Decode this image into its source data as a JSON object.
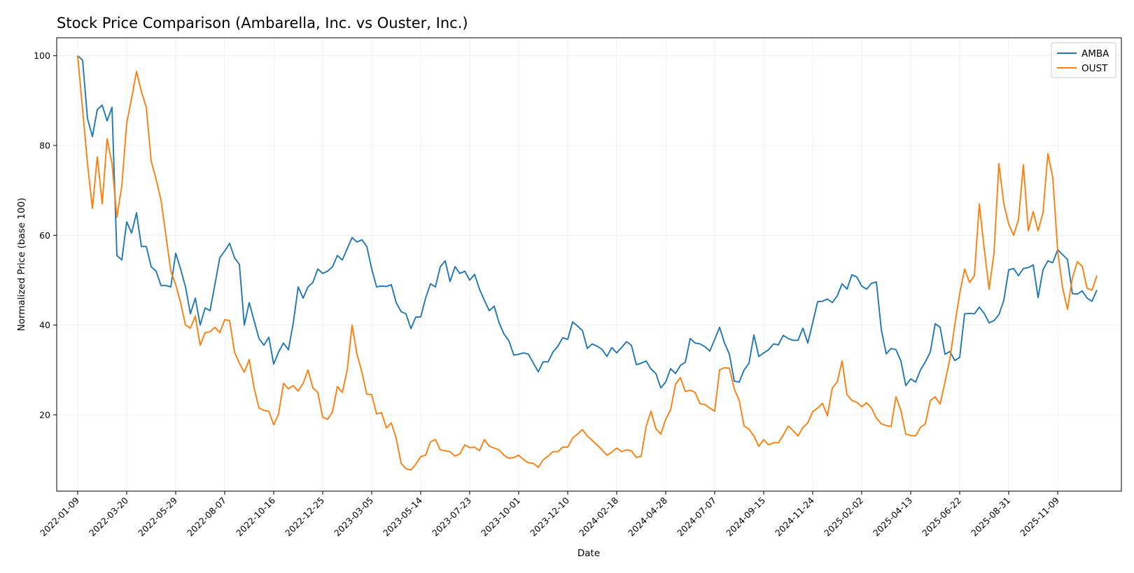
{
  "chart_data": {
    "type": "line",
    "title": "Stock Price Comparison (Ambarella, Inc. vs Ouster, Inc.)",
    "xlabel": "Date",
    "ylabel": "Normalized Price (base 100)",
    "x_start": "2022-01-09",
    "x_step_days": 7,
    "xlim": [
      "2021-12-10",
      "2026-02-08"
    ],
    "ylim": [
      3,
      104
    ],
    "x_ticks": [
      "2022-01-09",
      "2022-03-20",
      "2022-05-29",
      "2022-08-07",
      "2022-10-16",
      "2022-12-25",
      "2023-03-05",
      "2023-05-14",
      "2023-07-23",
      "2023-10-01",
      "2023-12-10",
      "2024-02-18",
      "2024-04-28",
      "2024-07-07",
      "2024-09-15",
      "2024-11-24",
      "2025-02-02",
      "2025-04-13",
      "2025-06-22",
      "2025-08-31",
      "2025-11-09"
    ],
    "y_ticks": [
      20,
      40,
      60,
      80,
      100
    ],
    "grid": true,
    "legend": "top-right",
    "colors": {
      "AMBA": "#1f77b4",
      "OUST": "#ff7f0e"
    },
    "series": [
      {
        "name": "AMBA",
        "values": [
          100,
          99,
          86,
          82,
          88,
          89,
          85.5,
          88.5,
          55.5,
          54.5,
          63,
          60.5,
          65,
          57.5,
          57.5,
          53,
          52,
          48.8,
          48.8,
          48.5,
          56,
          52.5,
          48.5,
          42.5,
          46,
          40,
          43.8,
          43.2,
          49,
          55,
          56.5,
          58.2,
          55,
          53.5,
          40,
          45,
          41,
          37,
          35.5,
          37.3,
          31.3,
          34,
          36,
          34.5,
          40.5,
          48.5,
          46,
          48.5,
          49.5,
          52.5,
          51.5,
          52,
          53,
          55.5,
          54.5,
          57,
          59.5,
          58.5,
          59,
          57.5,
          52.5,
          48.5,
          48.7,
          48.6,
          49,
          45,
          43,
          42.5,
          39.2,
          41.8,
          41.8,
          46,
          49.2,
          48.5,
          53,
          54.3,
          49.7,
          53,
          51.5,
          52,
          50,
          51.3,
          48,
          45.5,
          43.2,
          44.2,
          40.5,
          38,
          36.5,
          33.3,
          33.5,
          33.8,
          33.5,
          31.5,
          29.6,
          31.8,
          31.8,
          34,
          35.3,
          37.2,
          36.8,
          40.7,
          39.8,
          38.8,
          34.8,
          35.8,
          35.3,
          34.6,
          33,
          35,
          33.8,
          35,
          36.3,
          35.5,
          31.2,
          31.5,
          32,
          30.2,
          29.2,
          26,
          27.3,
          30.3,
          29.2,
          31,
          31.7,
          37,
          36,
          35.8,
          35.2,
          34.2,
          36.8,
          39.5,
          36,
          33.5,
          27.5,
          27.3,
          30,
          31.5,
          37.8,
          33,
          33.8,
          34.5,
          35.8,
          35.6,
          37.7,
          37,
          36.6,
          36.6,
          39.3,
          36,
          40.5,
          45.2,
          45.3,
          45.8,
          45,
          46.5,
          49.2,
          48,
          51.2,
          50.7,
          48.7,
          48,
          49.3,
          49.6,
          39,
          33.6,
          34.8,
          34.5,
          32,
          26.5,
          28,
          27.3,
          30,
          31.8,
          34,
          40.3,
          39.5,
          33.5,
          34.1,
          32.1,
          32.8,
          42.5,
          42.6,
          42.5,
          44,
          42.6,
          40.5,
          41,
          42.3,
          45.5,
          52.3,
          52.6,
          51,
          52.6,
          52.8,
          53.4,
          46.1,
          52.3,
          54.3,
          53.9,
          56.8,
          55.7,
          54.6,
          47,
          46.9,
          47.6,
          46,
          45.3,
          47.8
        ]
      },
      {
        "name": "OUST",
        "values": [
          100,
          88,
          76,
          66,
          77.5,
          67,
          81.5,
          76,
          64,
          71,
          85,
          90.5,
          96.5,
          92,
          88.5,
          76.5,
          72.5,
          67.8,
          60,
          52,
          49,
          45,
          40,
          39.3,
          42,
          35.5,
          38.3,
          38.5,
          39.5,
          38.3,
          41.2,
          41,
          34,
          31.5,
          29.5,
          32.3,
          26,
          21.5,
          21,
          20.8,
          17.8,
          20.2,
          27,
          25.8,
          26.5,
          25.3,
          27,
          30,
          26,
          25,
          19.5,
          19,
          20.7,
          26.3,
          25,
          30,
          40,
          33.5,
          29.5,
          24.6,
          24.5,
          20.2,
          20.5,
          17.1,
          18.2,
          14.8,
          9.2,
          8,
          7.7,
          9,
          10.7,
          11,
          14,
          14.5,
          12.2,
          12,
          11.8,
          10.8,
          11.3,
          13.3,
          12.7,
          12.8,
          12,
          14.5,
          13,
          12.6,
          12.2,
          11,
          10.3,
          10.5,
          11,
          10,
          9.3,
          9.2,
          8.3,
          10,
          10.8,
          11.8,
          11.8,
          12.8,
          12.8,
          14.8,
          15.7,
          16.7,
          15.3,
          14.3,
          13.3,
          12.2,
          11,
          11.7,
          12.6,
          11.8,
          12.2,
          12,
          10.5,
          10.8,
          17.4,
          20.8,
          16.9,
          15.7,
          19,
          21.1,
          26.8,
          28.3,
          25.2,
          25.5,
          25,
          22.5,
          22.3,
          21.5,
          20.8,
          30,
          30.5,
          30.4,
          25.8,
          23.2,
          17.5,
          16.8,
          15.3,
          13,
          14.5,
          13.3,
          13.8,
          13.8,
          15.5,
          17.5,
          16.5,
          15.3,
          17.2,
          18.2,
          20.7,
          21.5,
          22.6,
          19.8,
          26,
          27.3,
          32,
          24.5,
          23.2,
          22.8,
          21.8,
          22.7,
          21.5,
          19.3,
          18,
          17.6,
          17.4,
          24,
          21,
          15.7,
          15.4,
          15.3,
          17.2,
          18,
          23.2,
          24,
          22.4,
          27.3,
          32.5,
          40,
          47,
          52.5,
          49.5,
          51,
          67,
          57,
          48,
          56,
          76,
          67,
          62.5,
          60,
          63.5,
          75.7,
          61,
          65.3,
          61,
          65,
          78.2,
          72.8,
          56.5,
          48.3,
          43.5,
          50.5,
          54.1,
          53.1,
          48.2,
          47.8,
          51
        ]
      }
    ]
  }
}
